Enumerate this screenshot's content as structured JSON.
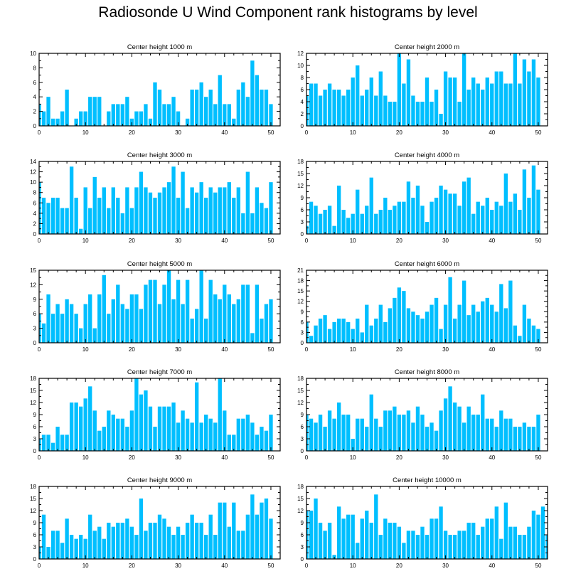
{
  "title": "Radiosonde U Wind Component rank histograms by level",
  "colors": {
    "bar": "#00bfff",
    "axis": "#000000"
  },
  "chart_data": [
    {
      "type": "bar",
      "title": "Center height 1000 m",
      "ylim": [
        0,
        10
      ],
      "yticks": [
        0,
        2,
        4,
        6,
        8,
        10
      ],
      "xlim": [
        0,
        52
      ],
      "xticks": [
        0,
        10,
        20,
        30,
        40,
        50
      ],
      "values": [
        3,
        2,
        4,
        1,
        1,
        2,
        5,
        0,
        1,
        2,
        2,
        4,
        4,
        4,
        0,
        2,
        3,
        3,
        3,
        4,
        1,
        2,
        2,
        3,
        1,
        6,
        5,
        3,
        3,
        4,
        2,
        0,
        1,
        5,
        5,
        6,
        4,
        5,
        3,
        7,
        3,
        3,
        1,
        5,
        6,
        4,
        9,
        7,
        5,
        5,
        3
      ]
    },
    {
      "type": "bar",
      "title": "Center height 2000 m",
      "ylim": [
        0,
        12
      ],
      "yticks": [
        0,
        2,
        4,
        6,
        8,
        10,
        12
      ],
      "xlim": [
        0,
        52
      ],
      "xticks": [
        0,
        10,
        20,
        30,
        40,
        50
      ],
      "values": [
        5,
        7,
        7,
        5,
        6,
        7,
        6,
        6,
        5,
        6,
        8,
        10,
        5,
        6,
        8,
        5,
        9,
        5,
        4,
        4,
        12,
        7,
        11,
        5,
        4,
        4,
        8,
        4,
        6,
        2,
        9,
        8,
        8,
        4,
        12,
        6,
        8,
        7,
        6,
        8,
        7,
        9,
        9,
        7,
        7,
        12,
        7,
        11,
        9,
        11,
        8
      ]
    },
    {
      "type": "bar",
      "title": "Center height 3000 m",
      "ylim": [
        0,
        14
      ],
      "yticks": [
        0,
        2,
        4,
        6,
        8,
        10,
        12,
        14
      ],
      "xlim": [
        0,
        52
      ],
      "xticks": [
        0,
        10,
        20,
        30,
        40,
        50
      ],
      "values": [
        10,
        7,
        6,
        7,
        7,
        5,
        5,
        13,
        7,
        1,
        9,
        5,
        11,
        7,
        9,
        5,
        9,
        7,
        4,
        9,
        5,
        9,
        12,
        9,
        8,
        7,
        8,
        9,
        10,
        13,
        7,
        12,
        5,
        9,
        8,
        10,
        7,
        9,
        8,
        9,
        9,
        10,
        7,
        9,
        4,
        12,
        4,
        9,
        6,
        5,
        10
      ]
    },
    {
      "type": "bar",
      "title": "Center height 4000 m",
      "ylim": [
        0,
        18
      ],
      "yticks": [
        0,
        3,
        6,
        9,
        12,
        15,
        18
      ],
      "xlim": [
        0,
        52
      ],
      "xticks": [
        0,
        10,
        20,
        30,
        40,
        50
      ],
      "values": [
        2,
        8,
        7,
        5,
        6,
        7,
        2,
        12,
        6,
        4,
        5,
        11,
        5,
        7,
        14,
        5,
        6,
        9,
        6,
        7,
        8,
        8,
        13,
        9,
        12,
        7,
        3,
        8,
        9,
        12,
        11,
        10,
        10,
        7,
        13,
        14,
        5,
        8,
        7,
        9,
        6,
        8,
        7,
        15,
        8,
        10,
        6,
        16,
        9,
        17,
        11
      ]
    },
    {
      "type": "bar",
      "title": "Center height 5000 m",
      "ylim": [
        0,
        15
      ],
      "yticks": [
        0,
        3,
        6,
        9,
        12,
        15
      ],
      "xlim": [
        0,
        52
      ],
      "xticks": [
        0,
        10,
        20,
        30,
        40,
        50
      ],
      "values": [
        6,
        4,
        10,
        6,
        8,
        6,
        9,
        8,
        6,
        3,
        8,
        10,
        3,
        10,
        14,
        6,
        9,
        12,
        8,
        7,
        10,
        10,
        7,
        12,
        13,
        13,
        8,
        12,
        15,
        9,
        13,
        8,
        13,
        5,
        7,
        15,
        5,
        13,
        10,
        9,
        12,
        10,
        8,
        9,
        12,
        12,
        2,
        12,
        5,
        8,
        9
      ]
    },
    {
      "type": "bar",
      "title": "Center height 6000 m",
      "ylim": [
        0,
        21
      ],
      "yticks": [
        0,
        3,
        6,
        9,
        12,
        15,
        18,
        21
      ],
      "xlim": [
        0,
        52
      ],
      "xticks": [
        0,
        10,
        20,
        30,
        40,
        50
      ],
      "values": [
        6,
        2,
        5,
        7,
        8,
        4,
        6,
        7,
        7,
        6,
        4,
        7,
        3,
        11,
        5,
        7,
        11,
        6,
        10,
        13,
        16,
        15,
        10,
        9,
        8,
        7,
        9,
        11,
        13,
        4,
        11,
        19,
        7,
        11,
        18,
        8,
        11,
        9,
        12,
        13,
        11,
        9,
        17,
        10,
        18,
        5,
        2,
        11,
        7,
        5,
        4
      ]
    },
    {
      "type": "bar",
      "title": "Center height 7000 m",
      "ylim": [
        0,
        18
      ],
      "yticks": [
        0,
        3,
        6,
        9,
        12,
        15,
        18
      ],
      "xlim": [
        0,
        52
      ],
      "xticks": [
        0,
        10,
        20,
        30,
        40,
        50
      ],
      "values": [
        3,
        4,
        4,
        2,
        6,
        4,
        4,
        12,
        12,
        11,
        13,
        16,
        10,
        5,
        6,
        10,
        9,
        8,
        8,
        6,
        10,
        18,
        14,
        15,
        11,
        6,
        11,
        11,
        11,
        12,
        7,
        10,
        8,
        7,
        17,
        7,
        9,
        8,
        7,
        18,
        10,
        4,
        4,
        8,
        8,
        9,
        7,
        4,
        6,
        5,
        9
      ]
    },
    {
      "type": "bar",
      "title": "Center height 8000 m",
      "ylim": [
        0,
        18
      ],
      "yticks": [
        0,
        3,
        6,
        9,
        12,
        15,
        18
      ],
      "xlim": [
        0,
        52
      ],
      "xticks": [
        0,
        10,
        20,
        30,
        40,
        50
      ],
      "values": [
        9,
        8,
        7,
        9,
        6,
        10,
        8,
        12,
        9,
        9,
        3,
        8,
        8,
        6,
        14,
        8,
        6,
        10,
        10,
        11,
        9,
        9,
        10,
        7,
        11,
        9,
        6,
        7,
        5,
        10,
        13,
        16,
        12,
        11,
        7,
        11,
        9,
        9,
        14,
        8,
        8,
        6,
        10,
        8,
        8,
        6,
        6,
        7,
        6,
        6,
        9
      ]
    },
    {
      "type": "bar",
      "title": "Center height 9000 m",
      "ylim": [
        0,
        18
      ],
      "yticks": [
        0,
        3,
        6,
        9,
        12,
        15,
        18
      ],
      "xlim": [
        0,
        52
      ],
      "xticks": [
        0,
        10,
        20,
        30,
        40,
        50
      ],
      "values": [
        3,
        11,
        3,
        7,
        7,
        4,
        10,
        6,
        5,
        6,
        5,
        11,
        7,
        8,
        5,
        9,
        8,
        9,
        9,
        10,
        8,
        6,
        15,
        7,
        9,
        9,
        11,
        10,
        8,
        6,
        8,
        6,
        9,
        11,
        9,
        9,
        6,
        11,
        6,
        14,
        14,
        8,
        14,
        7,
        7,
        11,
        16,
        11,
        14,
        15,
        10
      ]
    },
    {
      "type": "bar",
      "title": "Center height 10000 m",
      "ylim": [
        0,
        18
      ],
      "yticks": [
        0,
        3,
        6,
        9,
        12,
        15,
        18
      ],
      "xlim": [
        0,
        52
      ],
      "xticks": [
        0,
        10,
        20,
        30,
        40,
        50
      ],
      "values": [
        12,
        12,
        15,
        9,
        7,
        9,
        1,
        13,
        10,
        11,
        11,
        4,
        10,
        12,
        9,
        16,
        6,
        10,
        9,
        9,
        8,
        4,
        7,
        7,
        6,
        8,
        6,
        10,
        10,
        13,
        7,
        6,
        6,
        7,
        7,
        9,
        9,
        6,
        8,
        10,
        10,
        13,
        5,
        14,
        8,
        8,
        6,
        6,
        8,
        12,
        11,
        13,
        6
      ]
    }
  ]
}
